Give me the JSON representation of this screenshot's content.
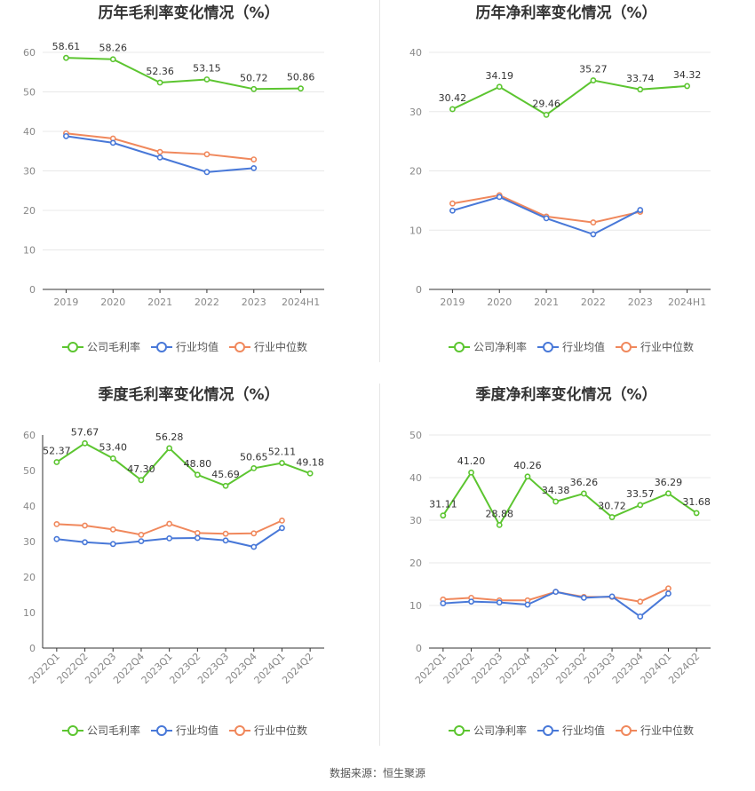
{
  "source": "数据来源：恒生聚源",
  "colors": {
    "company": "#5cc530",
    "avg": "#4878d8",
    "median": "#f0885c"
  },
  "chart_data": [
    {
      "type": "line",
      "title": "历年毛利率变化情况（%）",
      "categories": [
        "2019",
        "2020",
        "2021",
        "2022",
        "2023",
        "2024H1"
      ],
      "ylim": [
        0,
        60
      ],
      "yticks": [
        0,
        10,
        20,
        30,
        40,
        50,
        60
      ],
      "xrotate": false,
      "grid": true,
      "legend": "bottom",
      "series": [
        {
          "name": "公司毛利率",
          "key": "company",
          "labels": true,
          "values": [
            58.61,
            58.26,
            52.36,
            53.15,
            50.72,
            50.86
          ]
        },
        {
          "name": "行业均值",
          "key": "avg",
          "labels": false,
          "values": [
            38.8,
            37.1,
            33.4,
            29.7,
            30.7,
            null
          ]
        },
        {
          "name": "行业中位数",
          "key": "median",
          "labels": false,
          "values": [
            39.5,
            38.2,
            34.8,
            34.2,
            32.9,
            null
          ]
        }
      ]
    },
    {
      "type": "line",
      "title": "历年净利率变化情况（%）",
      "categories": [
        "2019",
        "2020",
        "2021",
        "2022",
        "2023",
        "2024H1"
      ],
      "ylim": [
        0,
        40
      ],
      "yticks": [
        0,
        10,
        20,
        30,
        40
      ],
      "xrotate": false,
      "grid": true,
      "legend": "bottom",
      "series": [
        {
          "name": "公司净利率",
          "key": "company",
          "labels": true,
          "values": [
            30.42,
            34.19,
            29.46,
            35.27,
            33.74,
            34.32
          ]
        },
        {
          "name": "行业均值",
          "key": "avg",
          "labels": false,
          "values": [
            13.3,
            15.6,
            12.0,
            9.3,
            13.4,
            null
          ]
        },
        {
          "name": "行业中位数",
          "key": "median",
          "labels": false,
          "values": [
            14.5,
            15.9,
            12.3,
            11.3,
            13.1,
            null
          ]
        }
      ]
    },
    {
      "type": "line",
      "title": "季度毛利率变化情况（%）",
      "categories": [
        "2022Q1",
        "2022Q2",
        "2022Q3",
        "2022Q4",
        "2023Q1",
        "2023Q2",
        "2023Q3",
        "2023Q4",
        "2024Q1",
        "2024Q2"
      ],
      "ylim": [
        0,
        60
      ],
      "yticks": [
        0,
        10,
        20,
        30,
        40,
        50,
        60
      ],
      "xrotate": true,
      "grid": false,
      "legend": "bottom",
      "series": [
        {
          "name": "公司毛利率",
          "key": "company",
          "labels": true,
          "values": [
            52.37,
            57.67,
            53.4,
            47.3,
            56.28,
            48.8,
            45.69,
            50.65,
            52.11,
            49.18
          ]
        },
        {
          "name": "行业均值",
          "key": "avg",
          "labels": false,
          "values": [
            30.7,
            29.8,
            29.3,
            30.1,
            30.9,
            31.0,
            30.3,
            28.5,
            33.8,
            null
          ]
        },
        {
          "name": "行业中位数",
          "key": "median",
          "labels": false,
          "values": [
            34.9,
            34.5,
            33.4,
            31.9,
            35.0,
            32.4,
            32.2,
            32.3,
            35.9,
            null
          ]
        }
      ]
    },
    {
      "type": "line",
      "title": "季度净利率变化情况（%）",
      "categories": [
        "2022Q1",
        "2022Q2",
        "2022Q3",
        "2022Q4",
        "2023Q1",
        "2023Q2",
        "2023Q3",
        "2023Q4",
        "2024Q1",
        "2024Q2"
      ],
      "ylim": [
        0,
        50
      ],
      "yticks": [
        0,
        10,
        20,
        30,
        40,
        50
      ],
      "xrotate": true,
      "grid": true,
      "legend": "bottom",
      "series": [
        {
          "name": "公司净利率",
          "key": "company",
          "labels": true,
          "values": [
            31.11,
            41.2,
            28.88,
            40.26,
            34.38,
            36.26,
            30.72,
            33.57,
            36.29,
            31.68
          ]
        },
        {
          "name": "行业均值",
          "key": "avg",
          "labels": false,
          "values": [
            10.5,
            10.9,
            10.7,
            10.2,
            13.2,
            11.8,
            12.1,
            7.4,
            12.8,
            null
          ]
        },
        {
          "name": "行业中位数",
          "key": "median",
          "labels": false,
          "values": [
            11.4,
            11.8,
            11.2,
            11.2,
            13.2,
            12.0,
            12.0,
            10.9,
            14.0,
            null
          ]
        }
      ]
    }
  ]
}
